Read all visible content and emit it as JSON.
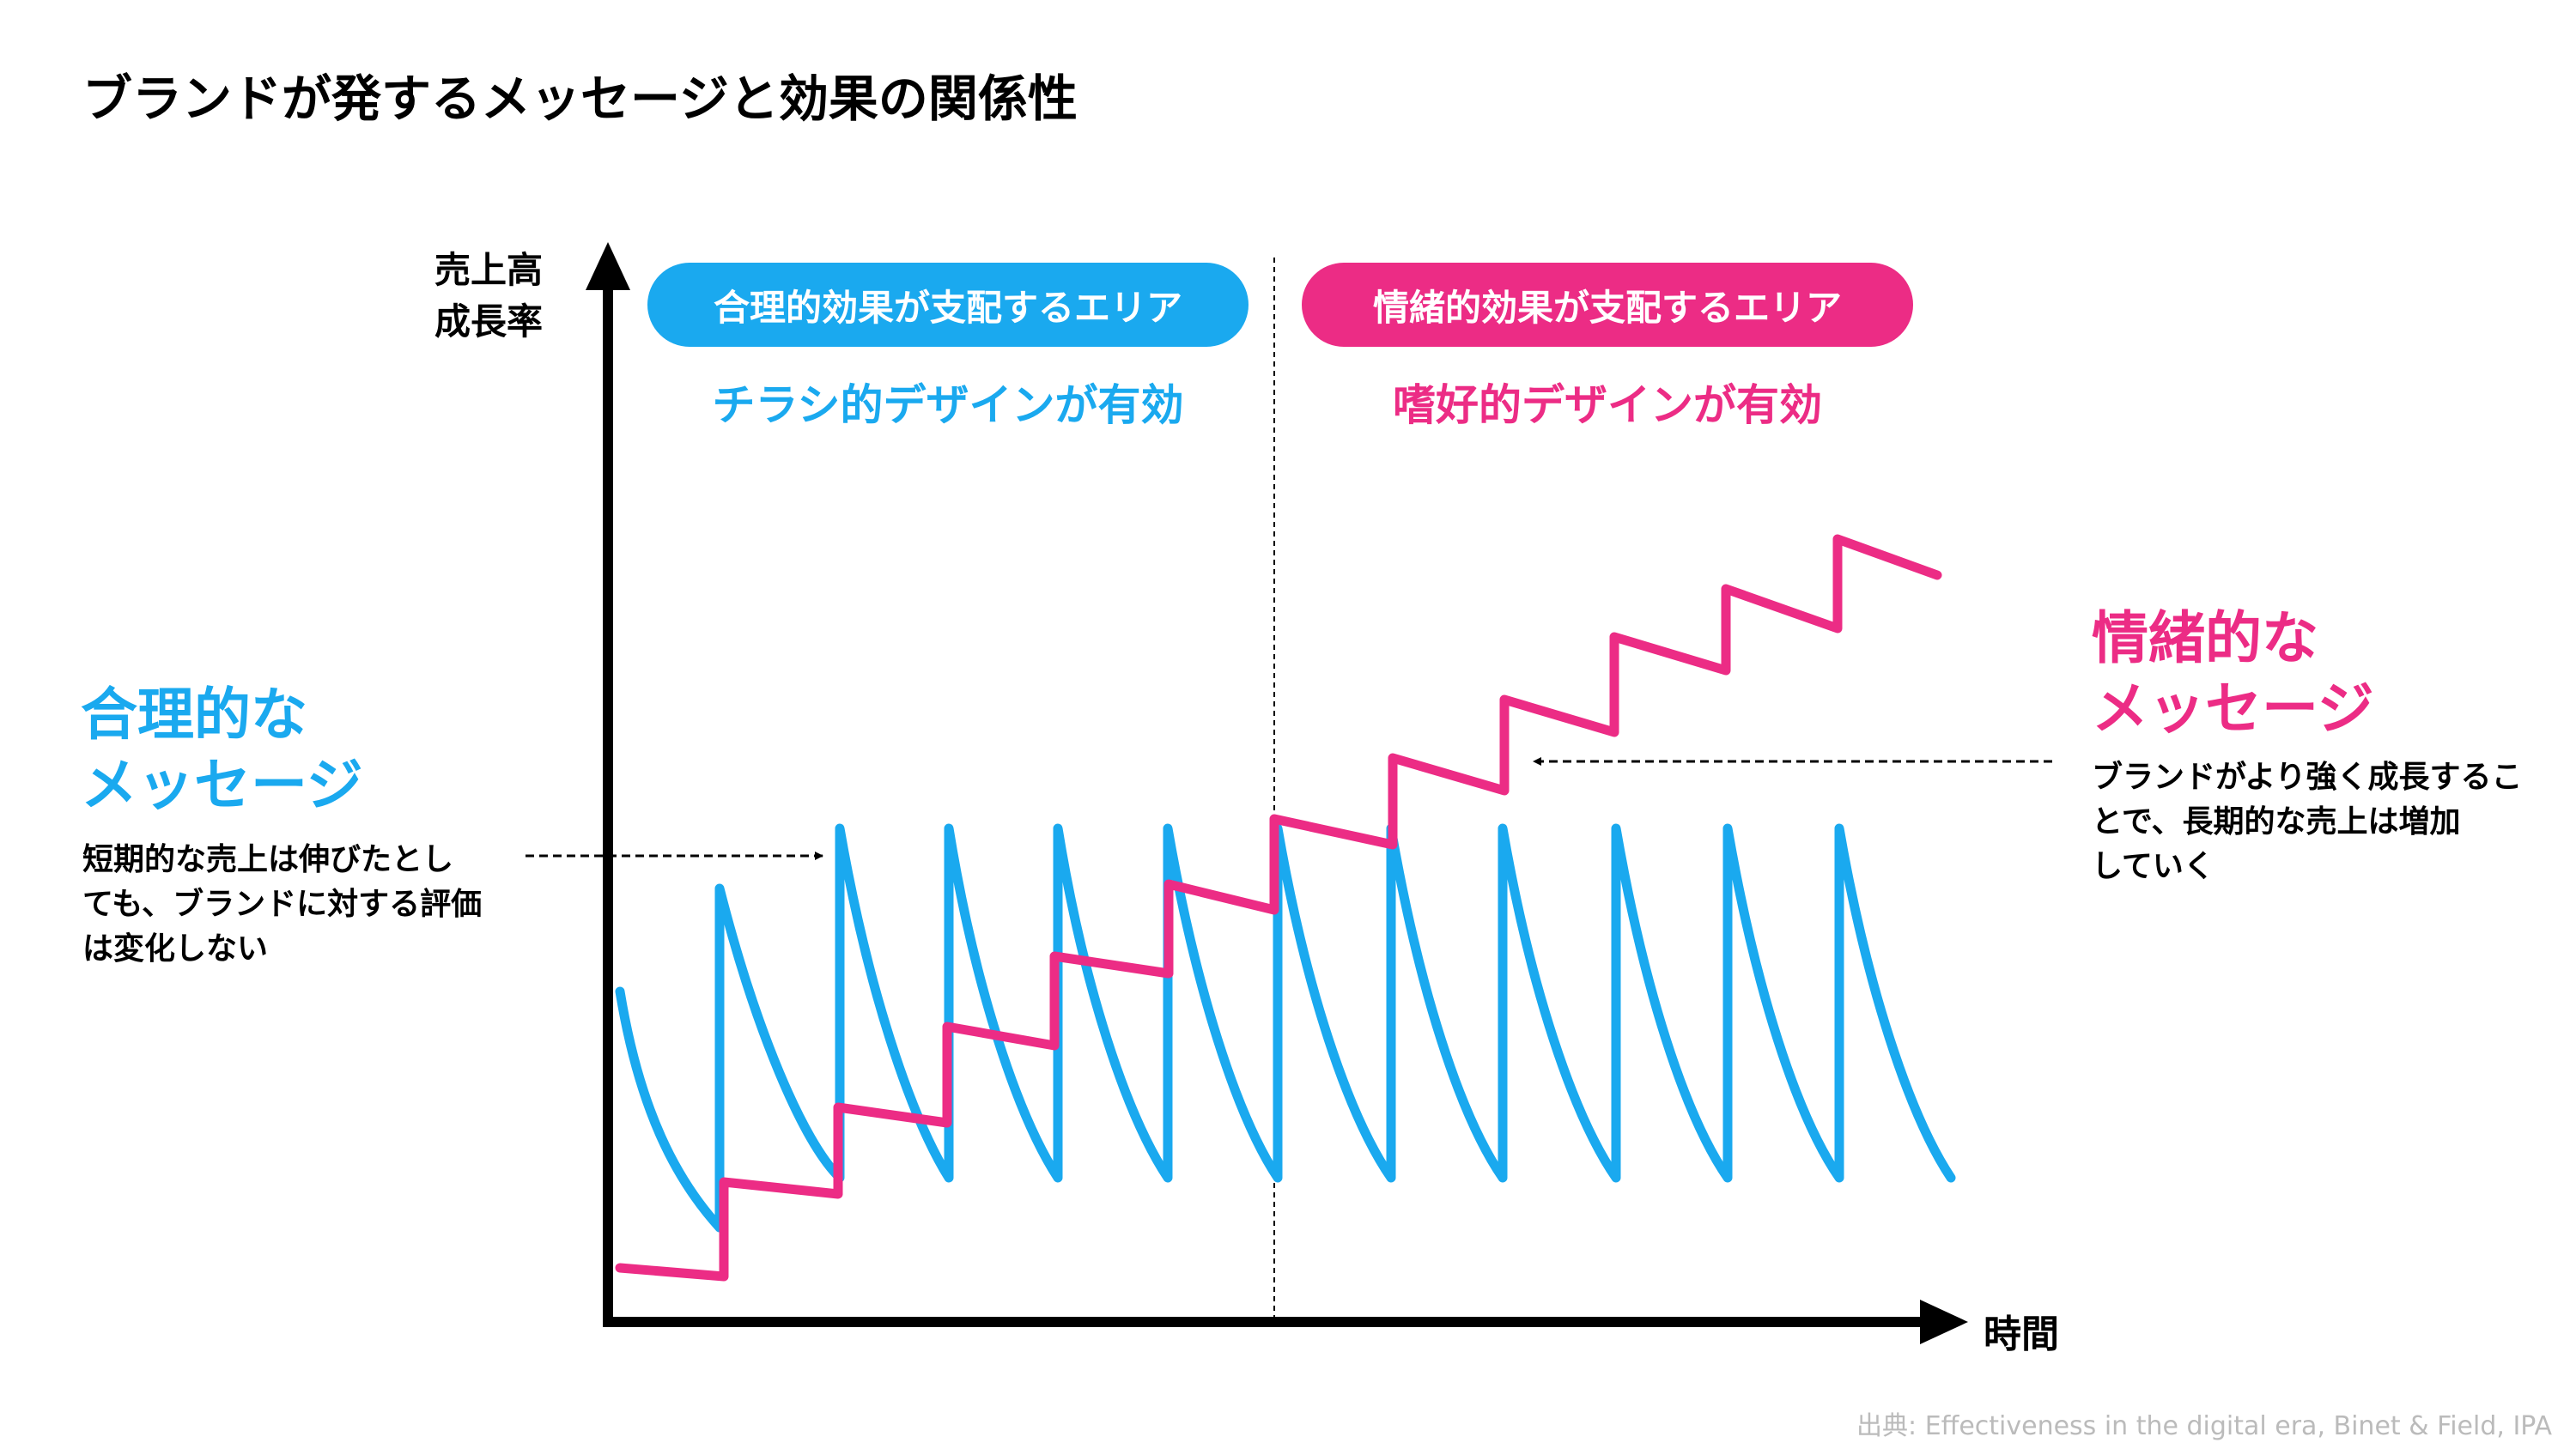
{
  "title": "ブランドが発するメッセージと効果の関係性",
  "axes": {
    "y_label_lines": [
      "売上高",
      "成長率"
    ],
    "x_label": "時間"
  },
  "zones": {
    "left": {
      "pill_label": "合理的効果が支配するエリア",
      "subtitle": "チラシ的デザインが有効",
      "color": "#1aa9ef"
    },
    "right": {
      "pill_label": "情緒的効果が支配するエリア",
      "subtitle": "嗜好的デザインが有効",
      "color": "#ec2c85"
    }
  },
  "rational_message": {
    "title_lines": [
      "合理的な",
      "メッセージ"
    ],
    "description_lines": [
      "短期的な売上は伸びたとし",
      "ても、ブランドに対する評価",
      "は変化しない"
    ],
    "color": "#1aa9ef"
  },
  "emotional_message": {
    "title_lines": [
      "情緒的な",
      "メッセージ"
    ],
    "description_lines": [
      "ブランドがより強く成長するこ",
      "とで、長期的な売上は増加",
      "していく"
    ],
    "color": "#ec2c85"
  },
  "source": "出典: Effectiveness in the digital era, Binet & Field, IPA",
  "colors": {
    "rational": "#1aa9ef",
    "emotional": "#ec2c85",
    "axis": "#000000",
    "source_text": "#bbbbbb"
  }
}
